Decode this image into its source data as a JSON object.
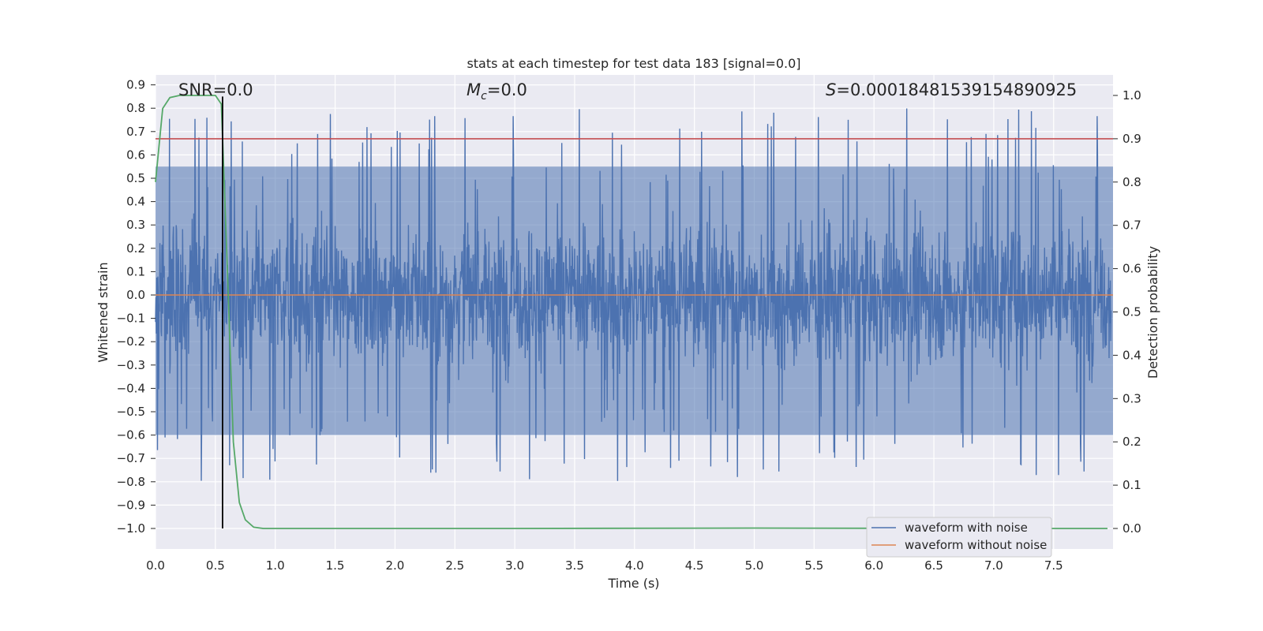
{
  "chart_data": {
    "type": "line",
    "title": "stats at each timestep for test data 183 [signal=0.0]",
    "xlabel": "Time (s)",
    "ylabel": "Whitened strain",
    "y2label": "Detection probability",
    "xlim": [
      0.0,
      8.0
    ],
    "ylim": [
      -1.09,
      0.94
    ],
    "y2lim": [
      -0.045,
      1.045
    ],
    "xticks": [
      "0.0",
      "0.5",
      "1.0",
      "1.5",
      "2.0",
      "2.5",
      "3.0",
      "3.5",
      "4.0",
      "4.5",
      "5.0",
      "5.5",
      "6.0",
      "6.5",
      "7.0",
      "7.5"
    ],
    "yticks": [
      "0.9",
      "0.8",
      "0.7",
      "0.6",
      "0.5",
      "0.4",
      "0.3",
      "0.2",
      "0.1",
      "0.0",
      "-0.1",
      "-0.2",
      "-0.3",
      "-0.4",
      "-0.5",
      "-0.6",
      "-0.7",
      "-0.8",
      "-0.9",
      "-1.0"
    ],
    "y2ticks": [
      "1.0",
      "0.9",
      "0.8",
      "0.7",
      "0.6",
      "0.5",
      "0.4",
      "0.3",
      "0.2",
      "0.1",
      "0.0"
    ],
    "grid": true,
    "legend_position": "lower-right",
    "annotations": {
      "snr": "SNR=0.0",
      "mc": "0.0",
      "s": "0.0001848153915489092​5"
    },
    "series": [
      {
        "name": "waveform with noise",
        "axis": "left",
        "color": "#4c72b0",
        "style": "dense noise, approx range -0.94 to 0.84",
        "envelope_upper": 0.55,
        "envelope_lower": -0.6,
        "peak_max": 0.84,
        "peak_min": -0.94
      },
      {
        "name": "waveform without noise",
        "axis": "left",
        "color": "#dd8452",
        "value": 0.0
      },
      {
        "name": "detection probability",
        "axis": "right",
        "color": "#55a868",
        "x": [
          0.0,
          0.06,
          0.12,
          0.2,
          0.3,
          0.4,
          0.5,
          0.55,
          0.6,
          0.65,
          0.7,
          0.75,
          0.82,
          0.9,
          1.5,
          3.0,
          5.0,
          7.0,
          7.95
        ],
        "y": [
          0.8,
          0.97,
          0.995,
          1.0,
          1.0,
          1.0,
          1.0,
          0.98,
          0.6,
          0.2,
          0.06,
          0.02,
          0.003,
          0.0,
          0.0,
          0.0,
          0.001,
          0.0,
          0.0
        ]
      },
      {
        "name": "threshold",
        "axis": "right",
        "color": "#c44e52",
        "value": 0.9
      },
      {
        "name": "marker",
        "axis": "left",
        "color": "#000000",
        "x": 0.56,
        "y_range": [
          -1.0,
          0.85
        ]
      }
    ]
  }
}
